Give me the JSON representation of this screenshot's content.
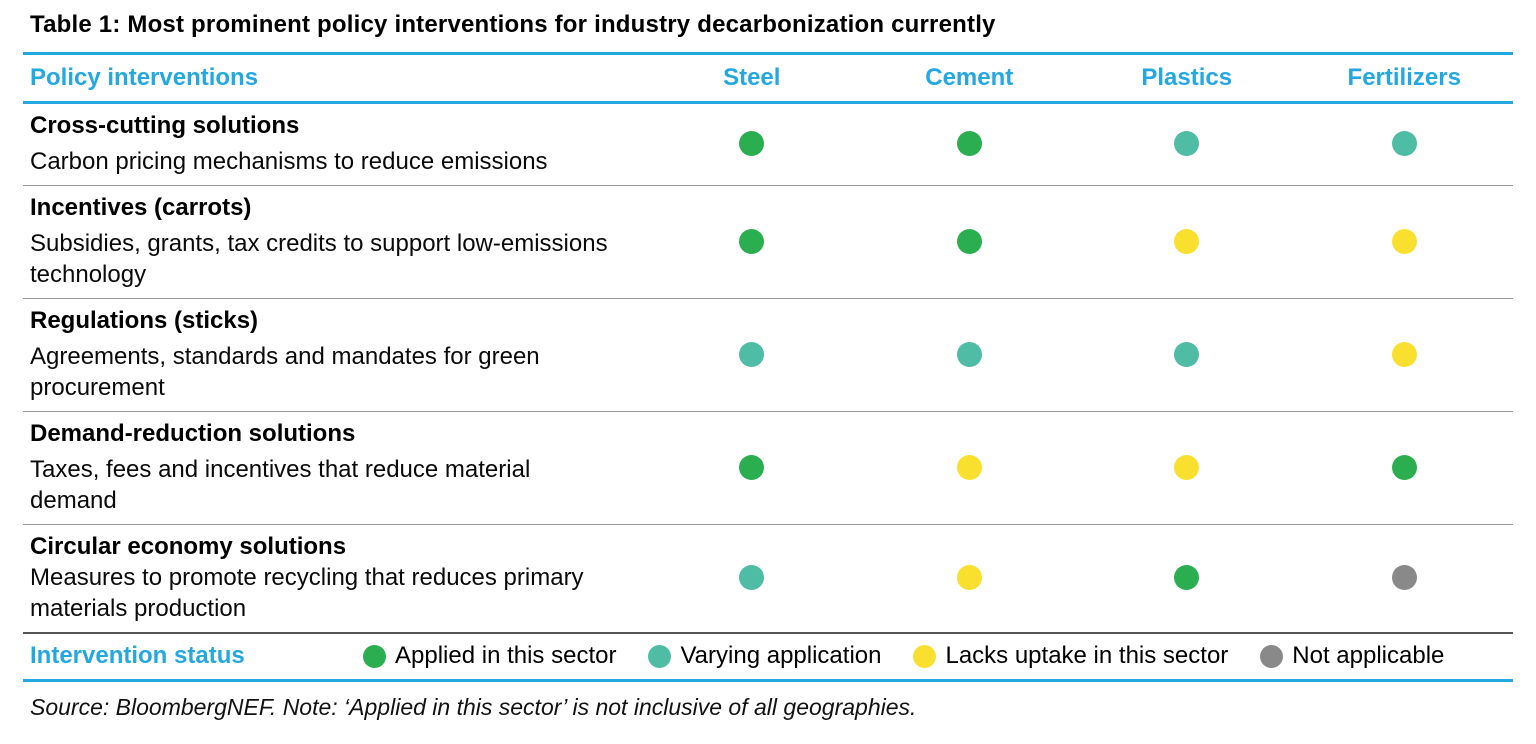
{
  "accent_color": "#25a8e0",
  "status_colors": {
    "applied": "#2bae4f",
    "varying": "#4fbca5",
    "lacks": "#f9e02e",
    "not_applicable": "#898989"
  },
  "chart_data": {
    "type": "table",
    "title": "Table 1: Most prominent policy interventions for industry decarbonization currently",
    "columns": [
      "Policy interventions",
      "Steel",
      "Cement",
      "Plastics",
      "Fertilizers"
    ],
    "rows": [
      {
        "heading": "Cross-cutting solutions",
        "description": "Carbon pricing mechanisms to reduce emissions",
        "statuses": [
          "applied",
          "applied",
          "varying",
          "varying"
        ]
      },
      {
        "heading": "Incentives (carrots)",
        "description": "Subsidies, grants, tax credits to support low-emissions technology",
        "statuses": [
          "applied",
          "applied",
          "lacks",
          "lacks"
        ]
      },
      {
        "heading": "Regulations (sticks)",
        "description": "Agreements, standards and mandates for green procurement",
        "statuses": [
          "varying",
          "varying",
          "varying",
          "lacks"
        ]
      },
      {
        "heading": "Demand-reduction solutions",
        "description": "Taxes, fees and incentives that reduce material demand",
        "statuses": [
          "applied",
          "lacks",
          "lacks",
          "applied"
        ]
      },
      {
        "heading": "Circular economy solutions",
        "description": "Measures to promote recycling that reduces primary materials production",
        "statuses": [
          "varying",
          "lacks",
          "applied",
          "not_applicable"
        ]
      }
    ],
    "legend": {
      "label": "Intervention status",
      "items": [
        {
          "status": "applied",
          "label": "Applied in this sector"
        },
        {
          "status": "varying",
          "label": "Varying application"
        },
        {
          "status": "lacks",
          "label": "Lacks uptake in this sector"
        },
        {
          "status": "not_applicable",
          "label": "Not applicable"
        }
      ]
    },
    "note": "Source: BloombergNEF. Note: ‘Applied in this sector’ is not inclusive of all geographies."
  }
}
